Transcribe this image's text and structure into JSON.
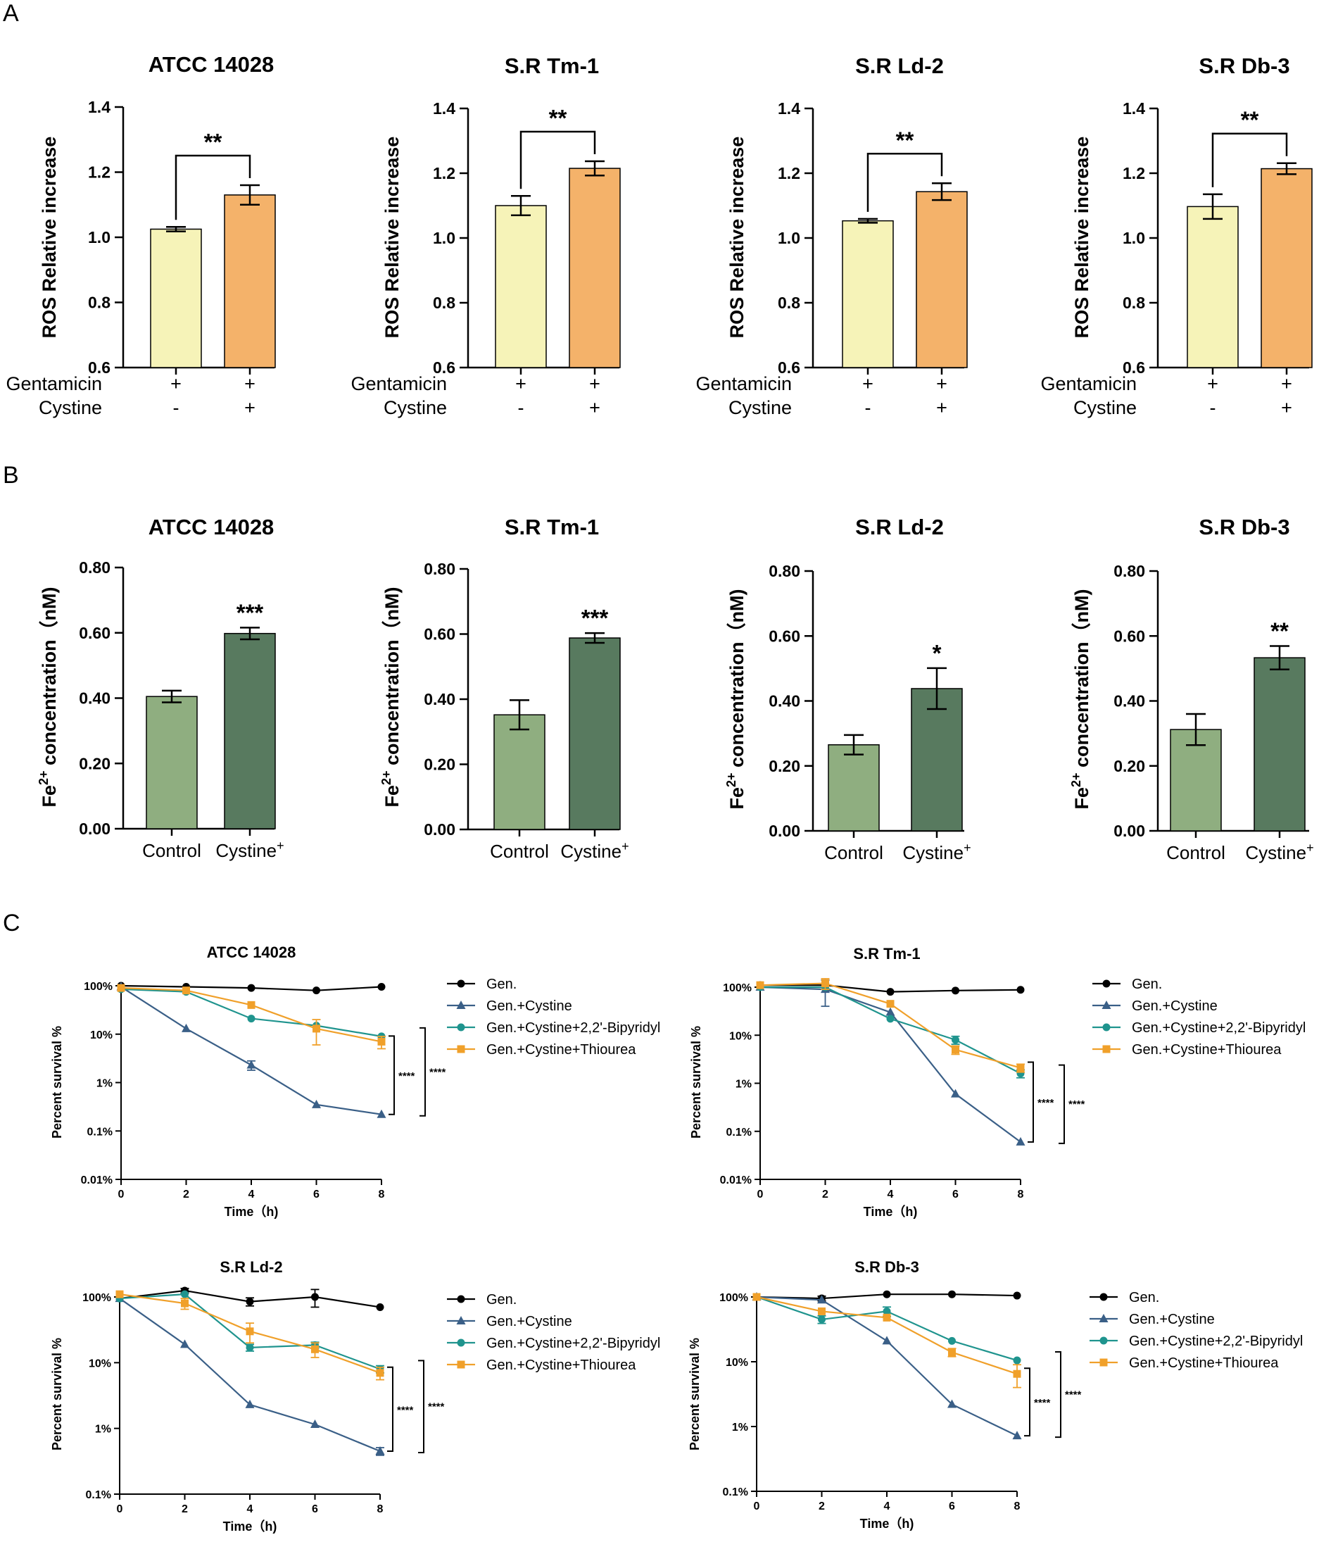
{
  "panel_letters": [
    "A",
    "B",
    "C"
  ],
  "chart_data": [
    {
      "id": "A1",
      "type": "bar",
      "title": "ATCC 14028",
      "ylabel": "ROS Relative increase",
      "ylim": [
        0.6,
        1.4
      ],
      "yticks": [
        "0.6",
        "0.8",
        "1.0",
        "1.2",
        "1.4"
      ],
      "values": [
        1.025,
        1.13
      ],
      "errors": [
        0.007,
        0.03
      ],
      "colors": [
        "#f6f3b8",
        "#f4b26a"
      ],
      "rows": [
        {
          "name": "Gentamicin",
          "signs": [
            "+",
            "+"
          ]
        },
        {
          "name": "Cystine",
          "signs": [
            "-",
            "+"
          ]
        }
      ],
      "significance": "**",
      "bracket": true
    },
    {
      "id": "A2",
      "type": "bar",
      "title": "S.R Tm-1",
      "ylabel": "ROS Relative increase",
      "ylim": [
        0.6,
        1.4
      ],
      "yticks": [
        "0.6",
        "0.8",
        "1.0",
        "1.2",
        "1.4"
      ],
      "values": [
        1.1,
        1.215
      ],
      "errors": [
        0.03,
        0.022
      ],
      "colors": [
        "#f6f3b8",
        "#f4b26a"
      ],
      "rows": [
        {
          "name": "Gentamicin",
          "signs": [
            "+",
            "+"
          ]
        },
        {
          "name": "Cystine",
          "signs": [
            "-",
            "+"
          ]
        }
      ],
      "significance": "**",
      "bracket": true
    },
    {
      "id": "A3",
      "type": "bar",
      "title": "S.R Ld-2",
      "ylabel": "ROS Relative increase",
      "ylim": [
        0.6,
        1.4
      ],
      "yticks": [
        "0.6",
        "0.8",
        "1.0",
        "1.2",
        "1.4"
      ],
      "values": [
        1.053,
        1.143
      ],
      "errors": [
        0.006,
        0.026
      ],
      "colors": [
        "#f6f3b8",
        "#f4b26a"
      ],
      "rows": [
        {
          "name": "Gentamicin",
          "signs": [
            "+",
            "+"
          ]
        },
        {
          "name": "Cystine",
          "signs": [
            "-",
            "+"
          ]
        }
      ],
      "significance": "**",
      "bracket": true
    },
    {
      "id": "A4",
      "type": "bar",
      "title": "S.R Db-3",
      "ylabel": "ROS Relative increase",
      "ylim": [
        0.6,
        1.4
      ],
      "yticks": [
        "0.6",
        "0.8",
        "1.0",
        "1.2",
        "1.4"
      ],
      "values": [
        1.097,
        1.214
      ],
      "errors": [
        0.038,
        0.017
      ],
      "colors": [
        "#f6f3b8",
        "#f4b26a"
      ],
      "rows": [
        {
          "name": "Gentamicin",
          "signs": [
            "+",
            "+"
          ]
        },
        {
          "name": "Cystine",
          "signs": [
            "-",
            "+"
          ]
        }
      ],
      "significance": "**",
      "bracket": true
    },
    {
      "id": "B1",
      "type": "bar",
      "title": "ATCC 14028",
      "ylabel_main": "Fe",
      "ylabel_sup": "2+",
      "ylabel_rest": " concentration（nM)",
      "ylim": [
        0,
        0.8
      ],
      "yticks": [
        "0.00",
        "0.20",
        "0.40",
        "0.60",
        "0.80"
      ],
      "categories": [
        "Control",
        "Cystine"
      ],
      "category_sups": [
        "",
        "+"
      ],
      "values": [
        0.405,
        0.598
      ],
      "errors": [
        0.018,
        0.018
      ],
      "colors": [
        "#8fae80",
        "#587a5f"
      ],
      "significance": "***",
      "bracket": false
    },
    {
      "id": "B2",
      "type": "bar",
      "title": "S.R Tm-1",
      "ylabel_main": "Fe",
      "ylabel_sup": "2+",
      "ylabel_rest": " concentration（nM)",
      "ylim": [
        0,
        0.8
      ],
      "yticks": [
        "0.00",
        "0.20",
        "0.40",
        "0.60",
        "0.80"
      ],
      "categories": [
        "Control",
        "Cystine"
      ],
      "category_sups": [
        "",
        "+"
      ],
      "values": [
        0.352,
        0.588
      ],
      "errors": [
        0.045,
        0.015
      ],
      "colors": [
        "#8fae80",
        "#587a5f"
      ],
      "significance": "***",
      "bracket": false
    },
    {
      "id": "B3",
      "type": "bar",
      "title": "S.R Ld-2",
      "ylabel_main": "Fe",
      "ylabel_sup": "2+",
      "ylabel_rest": " concentration（nM)",
      "ylim": [
        0,
        0.8
      ],
      "yticks": [
        "0.00",
        "0.20",
        "0.40",
        "0.60",
        "0.80"
      ],
      "categories": [
        "Control",
        "Cystine"
      ],
      "category_sups": [
        "",
        "+"
      ],
      "values": [
        0.265,
        0.438
      ],
      "errors": [
        0.03,
        0.063
      ],
      "colors": [
        "#8fae80",
        "#587a5f"
      ],
      "significance": "*",
      "bracket": false
    },
    {
      "id": "B4",
      "type": "bar",
      "title": "S.R Db-3",
      "ylabel_main": "Fe",
      "ylabel_sup": "2+",
      "ylabel_rest": " concentration（nM)",
      "ylim": [
        0,
        0.8
      ],
      "yticks": [
        "0.00",
        "0.20",
        "0.40",
        "0.60",
        "0.80"
      ],
      "categories": [
        "Control",
        "Cystine"
      ],
      "category_sups": [
        "",
        "+"
      ],
      "values": [
        0.312,
        0.533
      ],
      "errors": [
        0.048,
        0.036
      ],
      "colors": [
        "#8fae80",
        "#587a5f"
      ],
      "significance": "**",
      "bracket": false
    },
    {
      "id": "C1",
      "type": "line",
      "title": "ATCC 14028",
      "xlabel": "Time（h)",
      "ylabel": "Percent survival %",
      "x": [
        0,
        2,
        4,
        6,
        8
      ],
      "xticks": [
        "0",
        "2",
        "4",
        "6",
        "8"
      ],
      "ylog": true,
      "ylim_exp": [
        -2,
        2
      ],
      "yticks": [
        "0.01%",
        "0.1%",
        "1%",
        "10%",
        "100%"
      ],
      "legend": [
        "Gen.",
        "Gen.+Cystine",
        "Gen.+Cystine+2,2'-Bipyridyl",
        "Gen.+Cystine+Thiourea"
      ],
      "series": [
        {
          "name": "Gen.",
          "color": "#000000",
          "marker": "circle",
          "values": [
            100,
            95,
            90,
            80,
            95
          ],
          "errors": [
            0,
            0,
            0,
            0,
            0
          ]
        },
        {
          "name": "Gen.+Cystine",
          "color": "#3a5f87",
          "marker": "triangle",
          "values": [
            95,
            13,
            2.3,
            0.35,
            0.22
          ],
          "errors": [
            0,
            0,
            0.5,
            0,
            0
          ]
        },
        {
          "name": "Gen.+Cystine+2,2'-Bipyridyl",
          "color": "#1f948e",
          "marker": "circle",
          "values": [
            85,
            75,
            21,
            15,
            9
          ],
          "errors": [
            0,
            0,
            0,
            0,
            0
          ]
        },
        {
          "name": "Gen.+Cystine+Thiourea",
          "color": "#f0a02a",
          "marker": "square",
          "values": [
            90,
            80,
            40,
            13,
            7
          ],
          "errors": [
            0,
            0,
            0,
            7,
            2
          ]
        }
      ],
      "significance": [
        "****",
        "****"
      ]
    },
    {
      "id": "C2",
      "type": "line",
      "title": "S.R Tm-1",
      "xlabel": "Time（h)",
      "ylabel": "Percent survival %",
      "x": [
        0,
        2,
        4,
        6,
        8
      ],
      "xticks": [
        "0",
        "2",
        "4",
        "6",
        "8"
      ],
      "ylog": true,
      "ylim_exp": [
        -2,
        2
      ],
      "yticks": [
        "0.01%",
        "0.1%",
        "1%",
        "10%",
        "100%"
      ],
      "legend": [
        "Gen.",
        "Gen.+Cystine",
        "Gen.+Cystine+2,2'-Bipyridyl",
        "Gen.+Cystine+Thiourea"
      ],
      "series": [
        {
          "name": "Gen.",
          "color": "#000000",
          "marker": "circle",
          "values": [
            110,
            110,
            80,
            85,
            88
          ],
          "errors": [
            0,
            0,
            0,
            0,
            0
          ]
        },
        {
          "name": "Gen.+Cystine",
          "color": "#3a5f87",
          "marker": "triangle",
          "values": [
            100,
            90,
            30,
            0.6,
            0.06
          ],
          "errors": [
            0,
            50,
            0,
            0,
            0
          ]
        },
        {
          "name": "Gen.+Cystine+2,2'-Bipyridyl",
          "color": "#1f948e",
          "marker": "circle",
          "values": [
            100,
            100,
            22,
            8,
            1.6
          ],
          "errors": [
            0,
            0,
            0,
            1.5,
            0.3
          ]
        },
        {
          "name": "Gen.+Cystine+Thiourea",
          "color": "#f0a02a",
          "marker": "square",
          "values": [
            110,
            120,
            45,
            5,
            2.1
          ],
          "errors": [
            0,
            30,
            0,
            1,
            0.4
          ]
        }
      ],
      "significance": [
        "****",
        "****"
      ]
    },
    {
      "id": "C3",
      "type": "line",
      "title": "S.R Ld-2",
      "xlabel": "Time（h)",
      "ylabel": "Percent survival %",
      "x": [
        0,
        2,
        4,
        6,
        8
      ],
      "xticks": [
        "0",
        "2",
        "4",
        "6",
        "8"
      ],
      "ylog": true,
      "ylim_exp": [
        -1,
        2
      ],
      "yticks": [
        "0.1%",
        "1%",
        "10%",
        "100%"
      ],
      "legend": [
        "Gen.",
        "Gen.+Cystine",
        "Gen.+Cystine+2,2'-Bipyridyl",
        "Gen.+Cystine+Thiourea"
      ],
      "series": [
        {
          "name": "Gen.",
          "color": "#000000",
          "marker": "circle",
          "values": [
            95,
            125,
            85,
            100,
            70
          ],
          "errors": [
            0,
            10,
            12,
            30,
            0
          ]
        },
        {
          "name": "Gen.+Cystine",
          "color": "#3a5f87",
          "marker": "triangle",
          "values": [
            95,
            19,
            2.3,
            1.15,
            0.45
          ],
          "errors": [
            0,
            0,
            0,
            0,
            0.06
          ]
        },
        {
          "name": "Gen.+Cystine+2,2'-Bipyridyl",
          "color": "#1f948e",
          "marker": "circle",
          "values": [
            95,
            110,
            17,
            18.5,
            8
          ],
          "errors": [
            0,
            0,
            2,
            2,
            1
          ]
        },
        {
          "name": "Gen.+Cystine+Thiourea",
          "color": "#f0a02a",
          "marker": "square",
          "values": [
            110,
            80,
            30,
            16,
            7
          ],
          "errors": [
            0,
            15,
            10,
            4,
            1.5
          ]
        }
      ],
      "significance": [
        "****",
        "****"
      ]
    },
    {
      "id": "C4",
      "type": "line",
      "title": "S.R Db-3",
      "xlabel": "Time（h)",
      "ylabel": "Percent survival %",
      "x": [
        0,
        2,
        4,
        6,
        8
      ],
      "xticks": [
        "0",
        "2",
        "4",
        "6",
        "8"
      ],
      "ylog": true,
      "ylim_exp": [
        -1,
        2
      ],
      "yticks": [
        "0.1%",
        "1%",
        "10%",
        "100%"
      ],
      "legend": [
        "Gen.",
        "Gen.+Cystine",
        "Gen.+Cystine+2,2'-Bipyridyl",
        "Gen.+Cystine+Thiourea"
      ],
      "series": [
        {
          "name": "Gen.",
          "color": "#000000",
          "marker": "circle",
          "values": [
            100,
            95,
            110,
            110,
            105
          ],
          "errors": [
            0,
            8,
            0,
            0,
            0
          ]
        },
        {
          "name": "Gen.+Cystine",
          "color": "#3a5f87",
          "marker": "triangle",
          "values": [
            100,
            90,
            21,
            2.2,
            0.72
          ],
          "errors": [
            0,
            0,
            0,
            0,
            0
          ]
        },
        {
          "name": "Gen.+Cystine+2,2'-Bipyridyl",
          "color": "#1f948e",
          "marker": "circle",
          "values": [
            100,
            45,
            60,
            21,
            10.5
          ],
          "errors": [
            0,
            6,
            10,
            0,
            0
          ]
        },
        {
          "name": "Gen.+Cystine+Thiourea",
          "color": "#f0a02a",
          "marker": "square",
          "values": [
            100,
            60,
            48,
            14,
            6.5
          ],
          "errors": [
            0,
            0,
            0,
            2,
            2.5
          ]
        }
      ],
      "significance": [
        "****",
        "****"
      ]
    }
  ]
}
